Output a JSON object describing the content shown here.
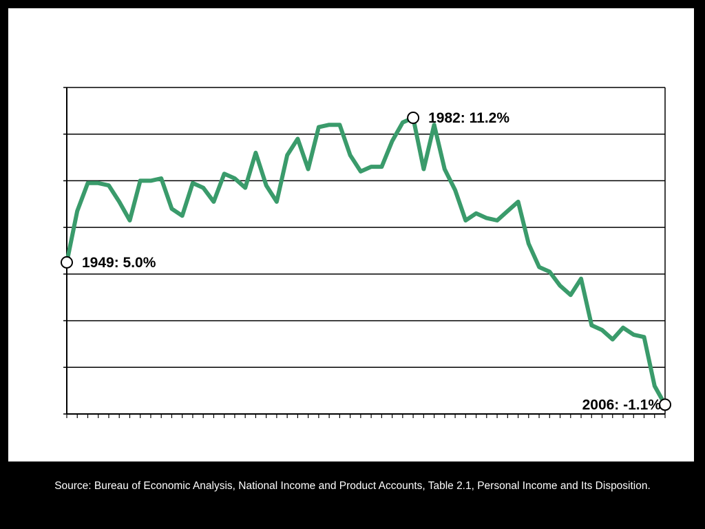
{
  "chart_data": {
    "type": "line",
    "title": "",
    "xlabel": "",
    "ylabel": "",
    "xlim": [
      1949,
      2006
    ],
    "ylim": [
      -1.5,
      12.5
    ],
    "grid": true,
    "line_color": "#3a9b6b",
    "series": [
      {
        "x": [
          1949,
          1950,
          1951,
          1952,
          1953,
          1954,
          1955,
          1956,
          1957,
          1958,
          1959,
          1960,
          1961,
          1962,
          1963,
          1964,
          1965,
          1966,
          1967,
          1968,
          1969,
          1970,
          1971,
          1972,
          1973,
          1974,
          1975,
          1976,
          1977,
          1978,
          1979,
          1980,
          1981,
          1982,
          1983,
          1984,
          1985,
          1986,
          1987,
          1988,
          1989,
          1990,
          1991,
          1992,
          1993,
          1994,
          1995,
          1996,
          1997,
          1998,
          1999,
          2000,
          2001,
          2002,
          2003,
          2004,
          2005,
          2006
        ],
        "values": [
          5.0,
          7.2,
          8.4,
          8.4,
          8.3,
          7.6,
          6.8,
          8.5,
          8.5,
          8.6,
          7.3,
          7.0,
          8.4,
          8.2,
          7.6,
          8.8,
          8.6,
          8.2,
          9.7,
          8.3,
          7.6,
          9.6,
          10.3,
          9.0,
          10.8,
          10.9,
          10.9,
          9.6,
          8.9,
          9.1,
          9.1,
          10.2,
          11.0,
          11.2,
          9.0,
          10.9,
          9.0,
          8.1,
          6.8,
          7.1,
          6.9,
          6.8,
          7.2,
          7.6,
          5.8,
          4.8,
          4.6,
          4.0,
          3.6,
          4.3,
          2.3,
          2.1,
          1.7,
          2.2,
          1.9,
          1.8,
          -0.3,
          -1.1
        ]
      }
    ],
    "annotations": [
      {
        "x": 1949,
        "y": 5.0,
        "text": "1949: 5.0%"
      },
      {
        "x": 1982,
        "y": 11.2,
        "text": "1982: 11.2%"
      },
      {
        "x": 2006,
        "y": -1.1,
        "text": "2006: -1.1%"
      }
    ]
  },
  "source_note": "Source: Bureau of Economic Analysis, National Income and Product Accounts, Table 2.1, Personal Income and Its Disposition."
}
